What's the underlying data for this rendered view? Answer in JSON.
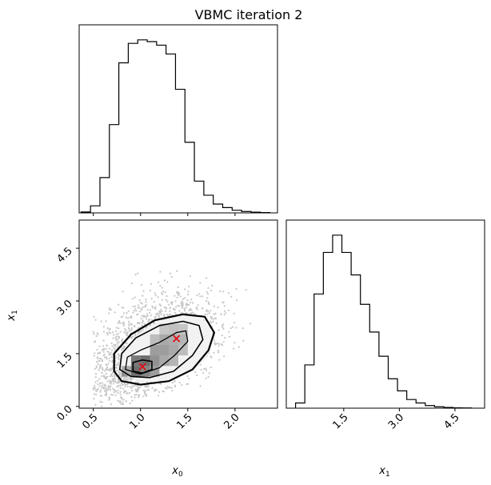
{
  "chart_data": {
    "type": "corner",
    "title": "VBMC iteration 2",
    "variables": [
      {
        "label": "x",
        "subscript": "0",
        "range": [
          0.35,
          2.45
        ],
        "ticks": [
          0.5,
          1.0,
          1.5,
          2.0
        ],
        "tick_labels": [
          "0.5",
          "1.0",
          "1.5",
          "2.0"
        ]
      },
      {
        "label": "x",
        "subscript": "1",
        "range": [
          -0.05,
          5.3
        ],
        "ticks": [
          0.0,
          1.5,
          3.0,
          4.5
        ],
        "tick_labels": [
          "0.0",
          "1.5",
          "3.0",
          "4.5"
        ]
      }
    ],
    "hist_x0": {
      "type": "step-histogram",
      "bin_edges": [
        0.37,
        0.47,
        0.57,
        0.67,
        0.77,
        0.87,
        0.97,
        1.07,
        1.17,
        1.27,
        1.37,
        1.47,
        1.57,
        1.67,
        1.77,
        1.87,
        1.97,
        2.07,
        2.17,
        2.27,
        2.37
      ],
      "counts": [
        0.005,
        0.04,
        0.2,
        0.5,
        0.85,
        0.96,
        0.98,
        0.97,
        0.95,
        0.9,
        0.7,
        0.4,
        0.18,
        0.1,
        0.05,
        0.03,
        0.015,
        0.008,
        0.004,
        0.002
      ]
    },
    "hist_x1": {
      "type": "step-histogram",
      "bin_edges": [
        0.2,
        0.45,
        0.7,
        0.95,
        1.2,
        1.45,
        1.7,
        1.95,
        2.2,
        2.45,
        2.7,
        2.95,
        3.2,
        3.45,
        3.7,
        3.95,
        4.2,
        4.45,
        4.7,
        4.95
      ],
      "counts": [
        0.03,
        0.25,
        0.66,
        0.9,
        1.0,
        0.9,
        0.77,
        0.6,
        0.44,
        0.3,
        0.17,
        0.1,
        0.05,
        0.03,
        0.015,
        0.008,
        0.004,
        0.002,
        0.001
      ]
    },
    "joint": {
      "type": "scatter-density-contour",
      "center": [
        1.12,
        1.45
      ],
      "spread": [
        0.33,
        0.7
      ],
      "correlation": 0.45,
      "extent_x": [
        0.5,
        2.2
      ],
      "extent_y": [
        0.0,
        4.9
      ],
      "markers": [
        {
          "x": 1.02,
          "y": 1.13,
          "color": "#e8000b"
        },
        {
          "x": 1.38,
          "y": 1.93,
          "color": "#e8000b"
        }
      ]
    }
  }
}
